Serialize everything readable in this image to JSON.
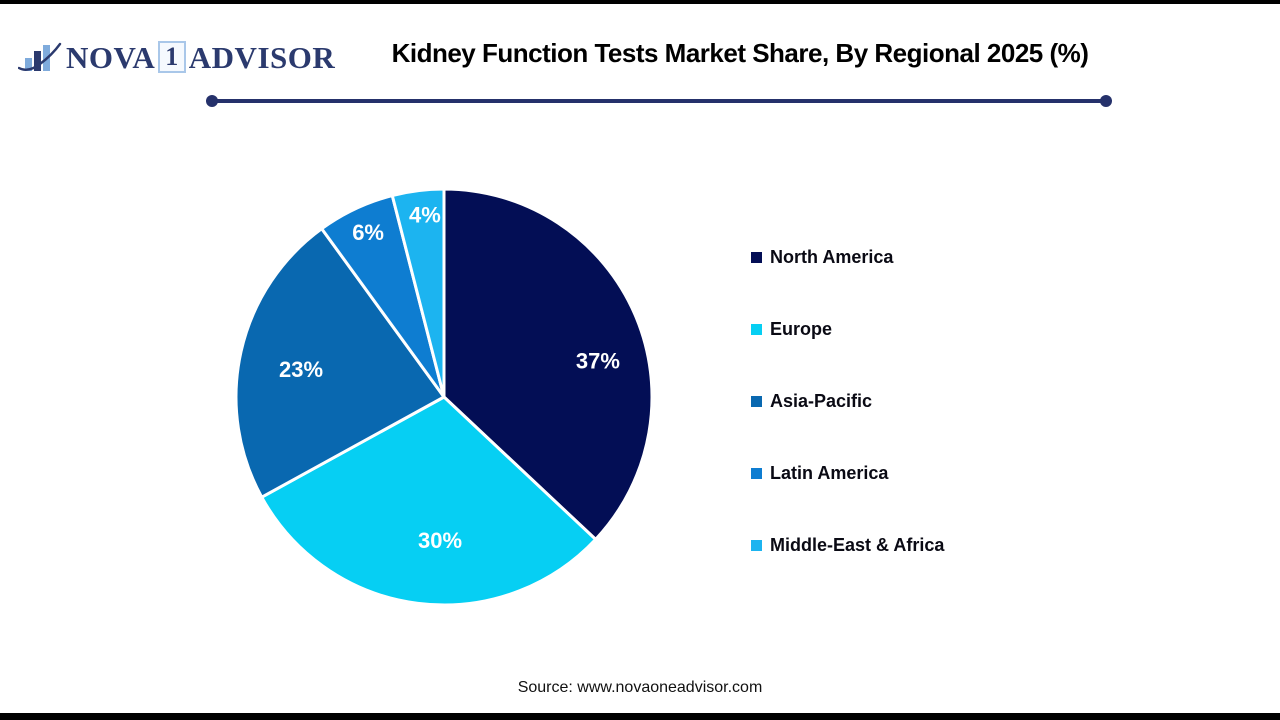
{
  "page": {
    "title": "Kidney Function Tests Market Share, By Regional 2025 (%)",
    "source": "Source: www.novaoneadvisor.com"
  },
  "logo": {
    "word1": "NOVA",
    "badge": "1",
    "word2": "ADVISOR"
  },
  "colors": {
    "brand_navy": "#2B3A6E",
    "brand_light_blue": "#7FABDC",
    "divider": "#25316B",
    "slice_label_text": "#ffffff",
    "legend_text": "#0A0A14"
  },
  "chart_data": {
    "type": "pie",
    "title": "Kidney Function Tests Market Share, By Regional 2025 (%)",
    "unit": "%",
    "start_angle_deg": 0,
    "direction": "clockwise",
    "legend_position": "right",
    "value_label_format": "{value}%",
    "slices": [
      {
        "label": "North America",
        "value": 37,
        "color": "#030E55",
        "label_angle_deg": 76.8,
        "label_r_frac": 0.76
      },
      {
        "label": "Europe",
        "value": 30,
        "color": "#06CFF3",
        "label_angle_deg": 181.6,
        "label_r_frac": 0.69
      },
      {
        "label": "Asia-Pacific",
        "value": 23,
        "color": "#0968B0",
        "label_angle_deg": 280.8,
        "label_r_frac": 0.7
      },
      {
        "label": "Latin America",
        "value": 6,
        "color": "#0E7DD1",
        "label_angle_deg": 335.2,
        "label_r_frac": 0.87
      },
      {
        "label": "Middle-East & Africa",
        "value": 4,
        "color": "#1CB4F0",
        "label_angle_deg": 354.0,
        "label_r_frac": 0.88
      }
    ]
  }
}
